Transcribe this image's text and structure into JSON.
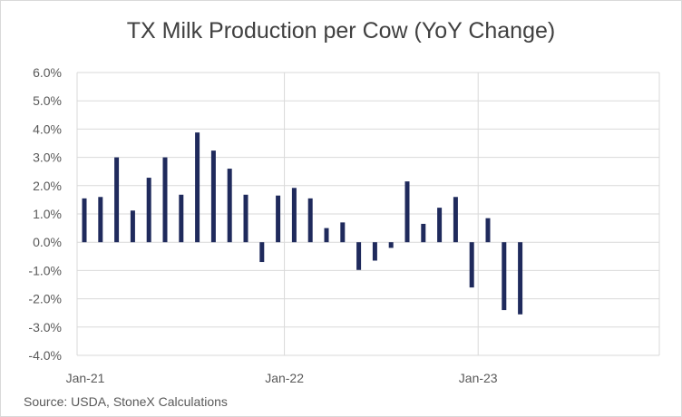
{
  "chart_data": {
    "type": "bar",
    "title": "TX Milk Production per Cow (YoY Change)",
    "source": "Source: USDA, StoneX Calculations",
    "xlabel": "",
    "ylabel": "",
    "ylim": [
      -4.0,
      6.0
    ],
    "y_ticks": [
      "6.0%",
      "5.0%",
      "4.0%",
      "3.0%",
      "2.0%",
      "1.0%",
      "0.0%",
      "-1.0%",
      "-2.0%",
      "-3.0%",
      "-4.0%"
    ],
    "x_ticks": [
      "Jan-21",
      "Jan-22",
      "Jan-23"
    ],
    "grid": true,
    "bar_color": "#1f2a5c",
    "categories": [
      "2021-01",
      "2021-02",
      "2021-03",
      "2021-04",
      "2021-05",
      "2021-06",
      "2021-07",
      "2021-08",
      "2021-09",
      "2021-10",
      "2021-11",
      "2021-12",
      "2022-01",
      "2022-02",
      "2022-03",
      "2022-04",
      "2022-05",
      "2022-06",
      "2022-07",
      "2022-08",
      "2022-09",
      "2022-10",
      "2022-11",
      "2022-12",
      "2023-01",
      "2023-02",
      "2023-03",
      "2023-04"
    ],
    "values": [
      1.55,
      1.6,
      3.0,
      1.12,
      2.28,
      3.0,
      1.68,
      3.88,
      3.24,
      2.6,
      1.68,
      -0.7,
      1.65,
      1.92,
      1.55,
      0.5,
      0.7,
      -0.98,
      -0.65,
      -0.2,
      2.15,
      0.65,
      1.22,
      1.6,
      -1.6,
      0.85,
      -2.4,
      -2.55
    ]
  }
}
